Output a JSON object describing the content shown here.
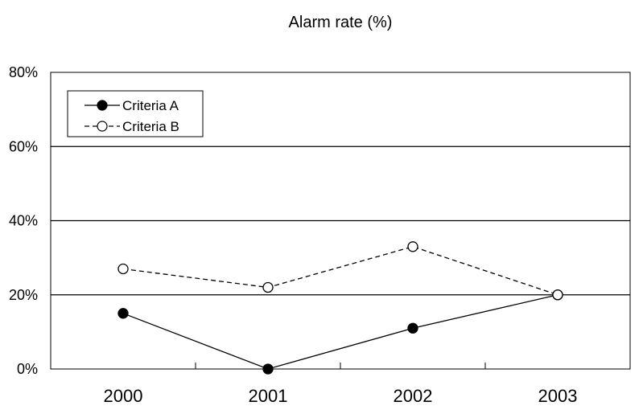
{
  "chart_data": {
    "type": "line",
    "title": "Alarm rate (%)",
    "xlabel": "",
    "ylabel": "",
    "categories": [
      "2000",
      "2001",
      "2002",
      "2003"
    ],
    "ylim": [
      0,
      80
    ],
    "y_ticks": [
      "0%",
      "20%",
      "40%",
      "60%",
      "80%"
    ],
    "y_tick_values": [
      0,
      20,
      40,
      60,
      80
    ],
    "grid": "horizontal",
    "legend_position": "top-left",
    "series": [
      {
        "name": "Criteria A",
        "values": [
          15,
          0,
          11,
          20
        ],
        "line_style": "solid",
        "marker": "filled-circle",
        "color": "#000000"
      },
      {
        "name": "Criteria B",
        "values": [
          27,
          22,
          33,
          20
        ],
        "line_style": "dashed",
        "marker": "open-circle",
        "color": "#000000"
      }
    ]
  }
}
